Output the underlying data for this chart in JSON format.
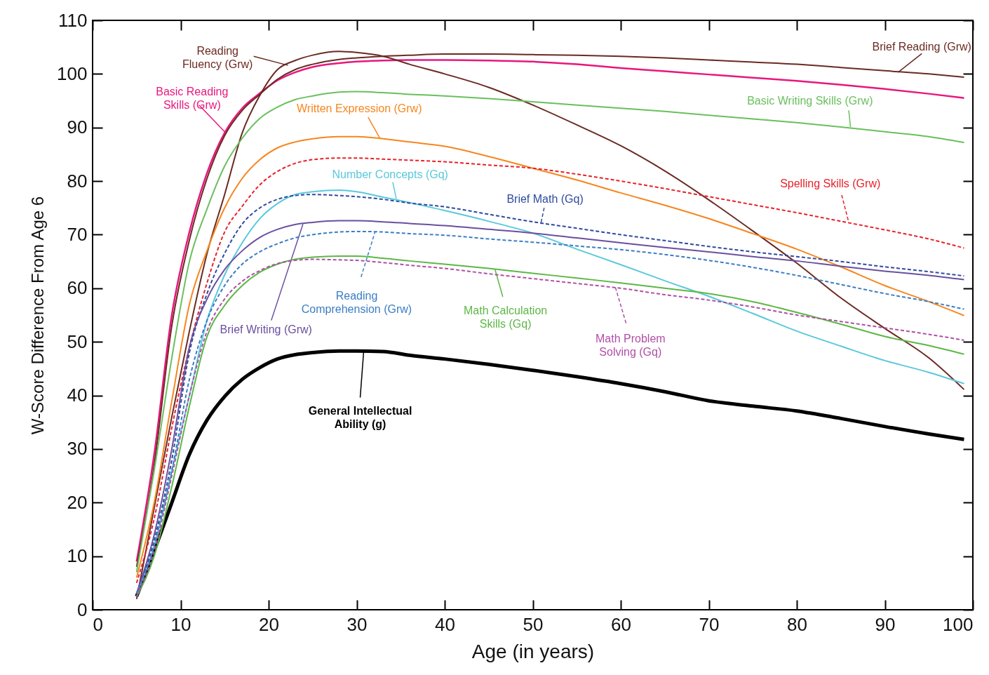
{
  "chart_data": {
    "type": "line",
    "xlabel": "Age (in years)",
    "ylabel": "W-Score Difference From Age 6",
    "xlim": [
      0,
      100
    ],
    "ylim": [
      0,
      110
    ],
    "xticks": [
      0,
      10,
      20,
      30,
      40,
      50,
      60,
      70,
      80,
      90,
      100
    ],
    "yticks": [
      0,
      10,
      20,
      30,
      40,
      50,
      60,
      70,
      80,
      90,
      100,
      110
    ],
    "grid": false,
    "x": [
      5,
      7,
      9,
      11,
      13,
      15,
      17,
      19,
      21,
      23,
      25,
      28,
      30,
      33,
      36,
      40,
      45,
      50,
      55,
      60,
      65,
      70,
      75,
      80,
      85,
      90,
      95,
      99
    ],
    "series": [
      {
        "name": "Brief Reading (Grw)",
        "color": "#6b2a22",
        "line_style": "solid",
        "values": [
          8,
          27,
          53,
          69,
          80.5,
          88.5,
          93.2,
          96.2,
          99,
          100.8,
          101.8,
          102.7,
          103,
          103.3,
          103.5,
          103.7,
          103.7,
          103.6,
          103.5,
          103.3,
          103,
          102.6,
          102.2,
          101.8,
          101.2,
          100.6,
          100,
          99.4
        ]
      },
      {
        "name": "Reading Fluency (Grw)",
        "color": "#6b2a22",
        "line_style": "solid",
        "values": [
          2,
          19,
          36,
          52,
          66.5,
          77.5,
          89,
          96,
          100.8,
          102.5,
          103.5,
          104.2,
          104,
          103.3,
          101.8,
          100,
          97.5,
          94.2,
          90.5,
          86.6,
          81.9,
          76.5,
          70.7,
          64.7,
          58.2,
          52.5,
          47,
          41.1
        ]
      },
      {
        "name": "Basic Reading Skills (Grw)",
        "color": "#e8177d",
        "line_style": "solid",
        "values": [
          9,
          29,
          55,
          70.5,
          81.5,
          89,
          93.6,
          96.4,
          98.8,
          100.3,
          101.3,
          102,
          102.3,
          102.5,
          102.6,
          102.6,
          102.5,
          102.3,
          101.8,
          101.1,
          100.5,
          99.9,
          99.3,
          98.7,
          98,
          97.2,
          96.3,
          95.5
        ]
      },
      {
        "name": "Basic Writing Skills (Grw)",
        "color": "#6abf5e",
        "line_style": "solid",
        "values": [
          7,
          26,
          47,
          65,
          74.8,
          82.8,
          88,
          91.7,
          93.8,
          95.2,
          95.9,
          96.6,
          96.7,
          96.5,
          96.2,
          95.9,
          95.4,
          94.8,
          94.2,
          93.6,
          93,
          92.3,
          91.6,
          90.9,
          90.1,
          89.2,
          88.3,
          87.2
        ]
      },
      {
        "name": "Written Expression (Grw)",
        "color": "#f7861e",
        "line_style": "solid",
        "values": [
          6,
          20,
          39,
          57,
          67,
          75,
          80.5,
          84,
          86.2,
          87.3,
          87.9,
          88.3,
          88.3,
          87.9,
          87.3,
          86.5,
          84.6,
          82.4,
          80.2,
          77.8,
          75.5,
          73,
          70.2,
          67.3,
          64,
          60.5,
          57.5,
          54.9
        ]
      },
      {
        "name": "Spelling Skills (Grw)",
        "color": "#e8212a",
        "line_style": "dashed",
        "values": [
          5,
          17,
          34,
          49,
          61,
          70.5,
          75.3,
          79.3,
          81.8,
          83.3,
          84,
          84.3,
          84.3,
          84.1,
          83.9,
          83.6,
          83,
          82.4,
          81.3,
          80,
          78.6,
          77.1,
          75.6,
          74.1,
          72.5,
          70.9,
          69.2,
          67.5
        ]
      },
      {
        "name": "Number Concepts (Gq)",
        "color": "#5bc8dc",
        "line_style": "solid",
        "values": [
          3,
          12,
          26,
          40,
          54,
          62.5,
          68.5,
          73,
          75.8,
          77.5,
          78,
          78.3,
          78,
          77,
          76,
          74.5,
          72.5,
          70.3,
          67.3,
          64.4,
          61.4,
          58.5,
          55.3,
          52,
          49.2,
          46.5,
          44.3,
          42.2
        ]
      },
      {
        "name": "Brief Math (Gq)",
        "color": "#2e4a9e",
        "line_style": "dashed",
        "values": [
          3,
          13,
          28,
          48,
          59,
          66.5,
          72,
          75,
          76.6,
          77.3,
          77.5,
          77.3,
          77.1,
          76.6,
          75.9,
          75.2,
          73.8,
          72.4,
          71.2,
          70,
          68.9,
          67.8,
          66.8,
          65.9,
          65,
          64,
          63.1,
          62.3
        ]
      },
      {
        "name": "Brief Writing (Grw)",
        "color": "#6a4fa0",
        "line_style": "solid",
        "values": [
          3,
          14,
          30,
          49,
          58,
          63.5,
          67,
          69.5,
          71,
          71.9,
          72.3,
          72.6,
          72.6,
          72.4,
          72.1,
          71.7,
          71,
          70.3,
          69.4,
          68.5,
          67.6,
          66.8,
          65.9,
          65.1,
          64.1,
          63.2,
          62.4,
          61.6
        ]
      },
      {
        "name": "Reading Comprehension (Grw)",
        "color": "#3b7dc4",
        "line_style": "dashed",
        "values": [
          3,
          12,
          26,
          43,
          54,
          60.5,
          64.5,
          66.8,
          68.3,
          69.4,
          70,
          70.5,
          70.6,
          70.5,
          70.2,
          69.9,
          69.2,
          68.6,
          67.9,
          67.2,
          66.3,
          65.2,
          63.9,
          62.4,
          60.7,
          59,
          57.5,
          56.1
        ]
      },
      {
        "name": "Math Calculation Skills (Gq)",
        "color": "#5cb846",
        "line_style": "solid",
        "values": [
          2.5,
          10,
          23,
          38,
          51,
          56.8,
          60.5,
          63,
          64.5,
          65.4,
          65.8,
          66,
          66,
          65.6,
          65.1,
          64.5,
          63.7,
          62.8,
          61.9,
          61,
          60,
          59,
          57.5,
          55.5,
          53.3,
          51,
          49.3,
          47.7
        ]
      },
      {
        "name": "Math Problem Solving (Gq)",
        "color": "#b04fa5",
        "line_style": "dashed",
        "values": [
          2.5,
          11,
          25,
          40,
          52,
          58,
          61.3,
          63.3,
          64.6,
          65.2,
          65.4,
          65.3,
          65.2,
          64.8,
          64.3,
          63.7,
          62.7,
          61.8,
          60.9,
          60,
          58.8,
          57.8,
          56.5,
          55,
          53.8,
          52.6,
          51.4,
          50.3
        ]
      },
      {
        "name": "General Intellectual Ability (g)",
        "color": "#000000",
        "line_style": "solid",
        "values": [
          2.5,
          11,
          20,
          29,
          35.4,
          39.8,
          43,
          45.2,
          46.8,
          47.6,
          48,
          48.3,
          48.3,
          48.2,
          47.5,
          46.8,
          45.8,
          44.7,
          43.5,
          42.2,
          40.7,
          39,
          38,
          37.1,
          35.7,
          34.2,
          32.8,
          31.8
        ]
      }
    ]
  }
}
